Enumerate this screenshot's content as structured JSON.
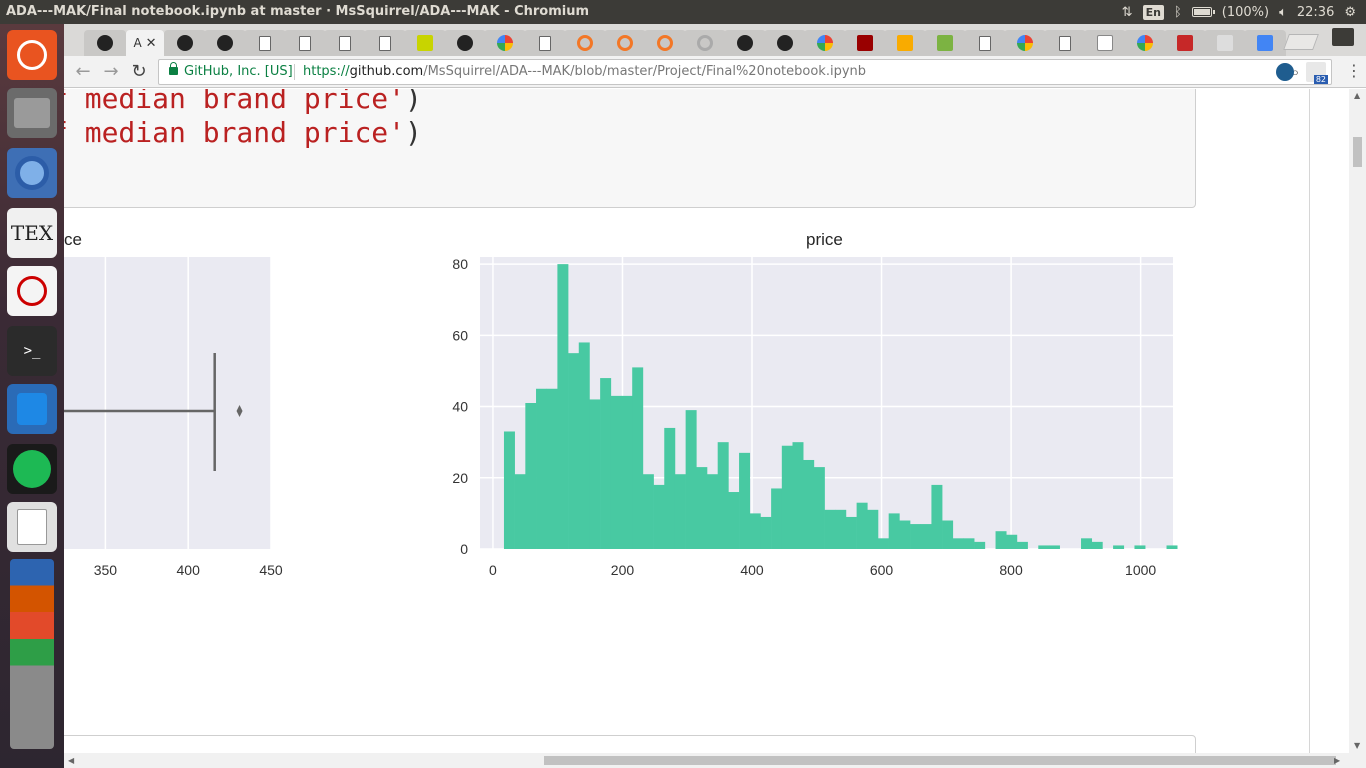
{
  "window": {
    "title": "ADA---MAK/Final notebook.ipynb at master · MsSquirrel/ADA---MAK - Chromium"
  },
  "panel": {
    "language": "En",
    "battery": "(100%)",
    "clock": "22:36"
  },
  "browser": {
    "active_tab_label": "A",
    "secure_label": "GitHub, Inc. [US]",
    "url_scheme": "https://",
    "url_host": "github.com",
    "url_path": "/MsSquirrel/ADA---MAK/blob/master/Project/Final%20notebook.ipynb",
    "extension_badge": "82"
  },
  "code": {
    "line1_prefix": "f ",
    "line1_string": "median brand price'",
    "line1_suffix": ")",
    "line2_prefix": "f ",
    "line2_string": "median brand price'",
    "line2_suffix": ")"
  },
  "boxplot": {
    "title_fragment": "ce",
    "xticks": [
      "350",
      "400",
      "450"
    ],
    "xlim": [
      325,
      450
    ],
    "whisker_end": 416,
    "outlier": 431,
    "color_bg": "#eaeaf2",
    "color_line": "#666666"
  },
  "chart_data": {
    "type": "bar",
    "title": "price",
    "xlabel": "",
    "ylabel": "",
    "xlim": [
      -20,
      1050
    ],
    "ylim": [
      0,
      82
    ],
    "xticks": [
      0,
      200,
      400,
      600,
      800,
      1000
    ],
    "yticks": [
      0,
      20,
      40,
      60,
      80
    ],
    "grid": true,
    "bin_width": 16.5,
    "bin_start": 17,
    "values": [
      33,
      21,
      41,
      45,
      45,
      80,
      55,
      58,
      42,
      48,
      43,
      43,
      51,
      21,
      18,
      34,
      21,
      39,
      23,
      21,
      30,
      16,
      27,
      10,
      9,
      17,
      29,
      30,
      25,
      23,
      11,
      11,
      9,
      13,
      11,
      3,
      10,
      8,
      7,
      7,
      18,
      8,
      3,
      3,
      2,
      0,
      5,
      4,
      2,
      0,
      1,
      1,
      0,
      0,
      3,
      2,
      0,
      1,
      0,
      1,
      0,
      0,
      1,
      0,
      0,
      0,
      0,
      1,
      2
    ],
    "color_bar": "#48c9a2",
    "color_bg": "#eaeaf2"
  }
}
